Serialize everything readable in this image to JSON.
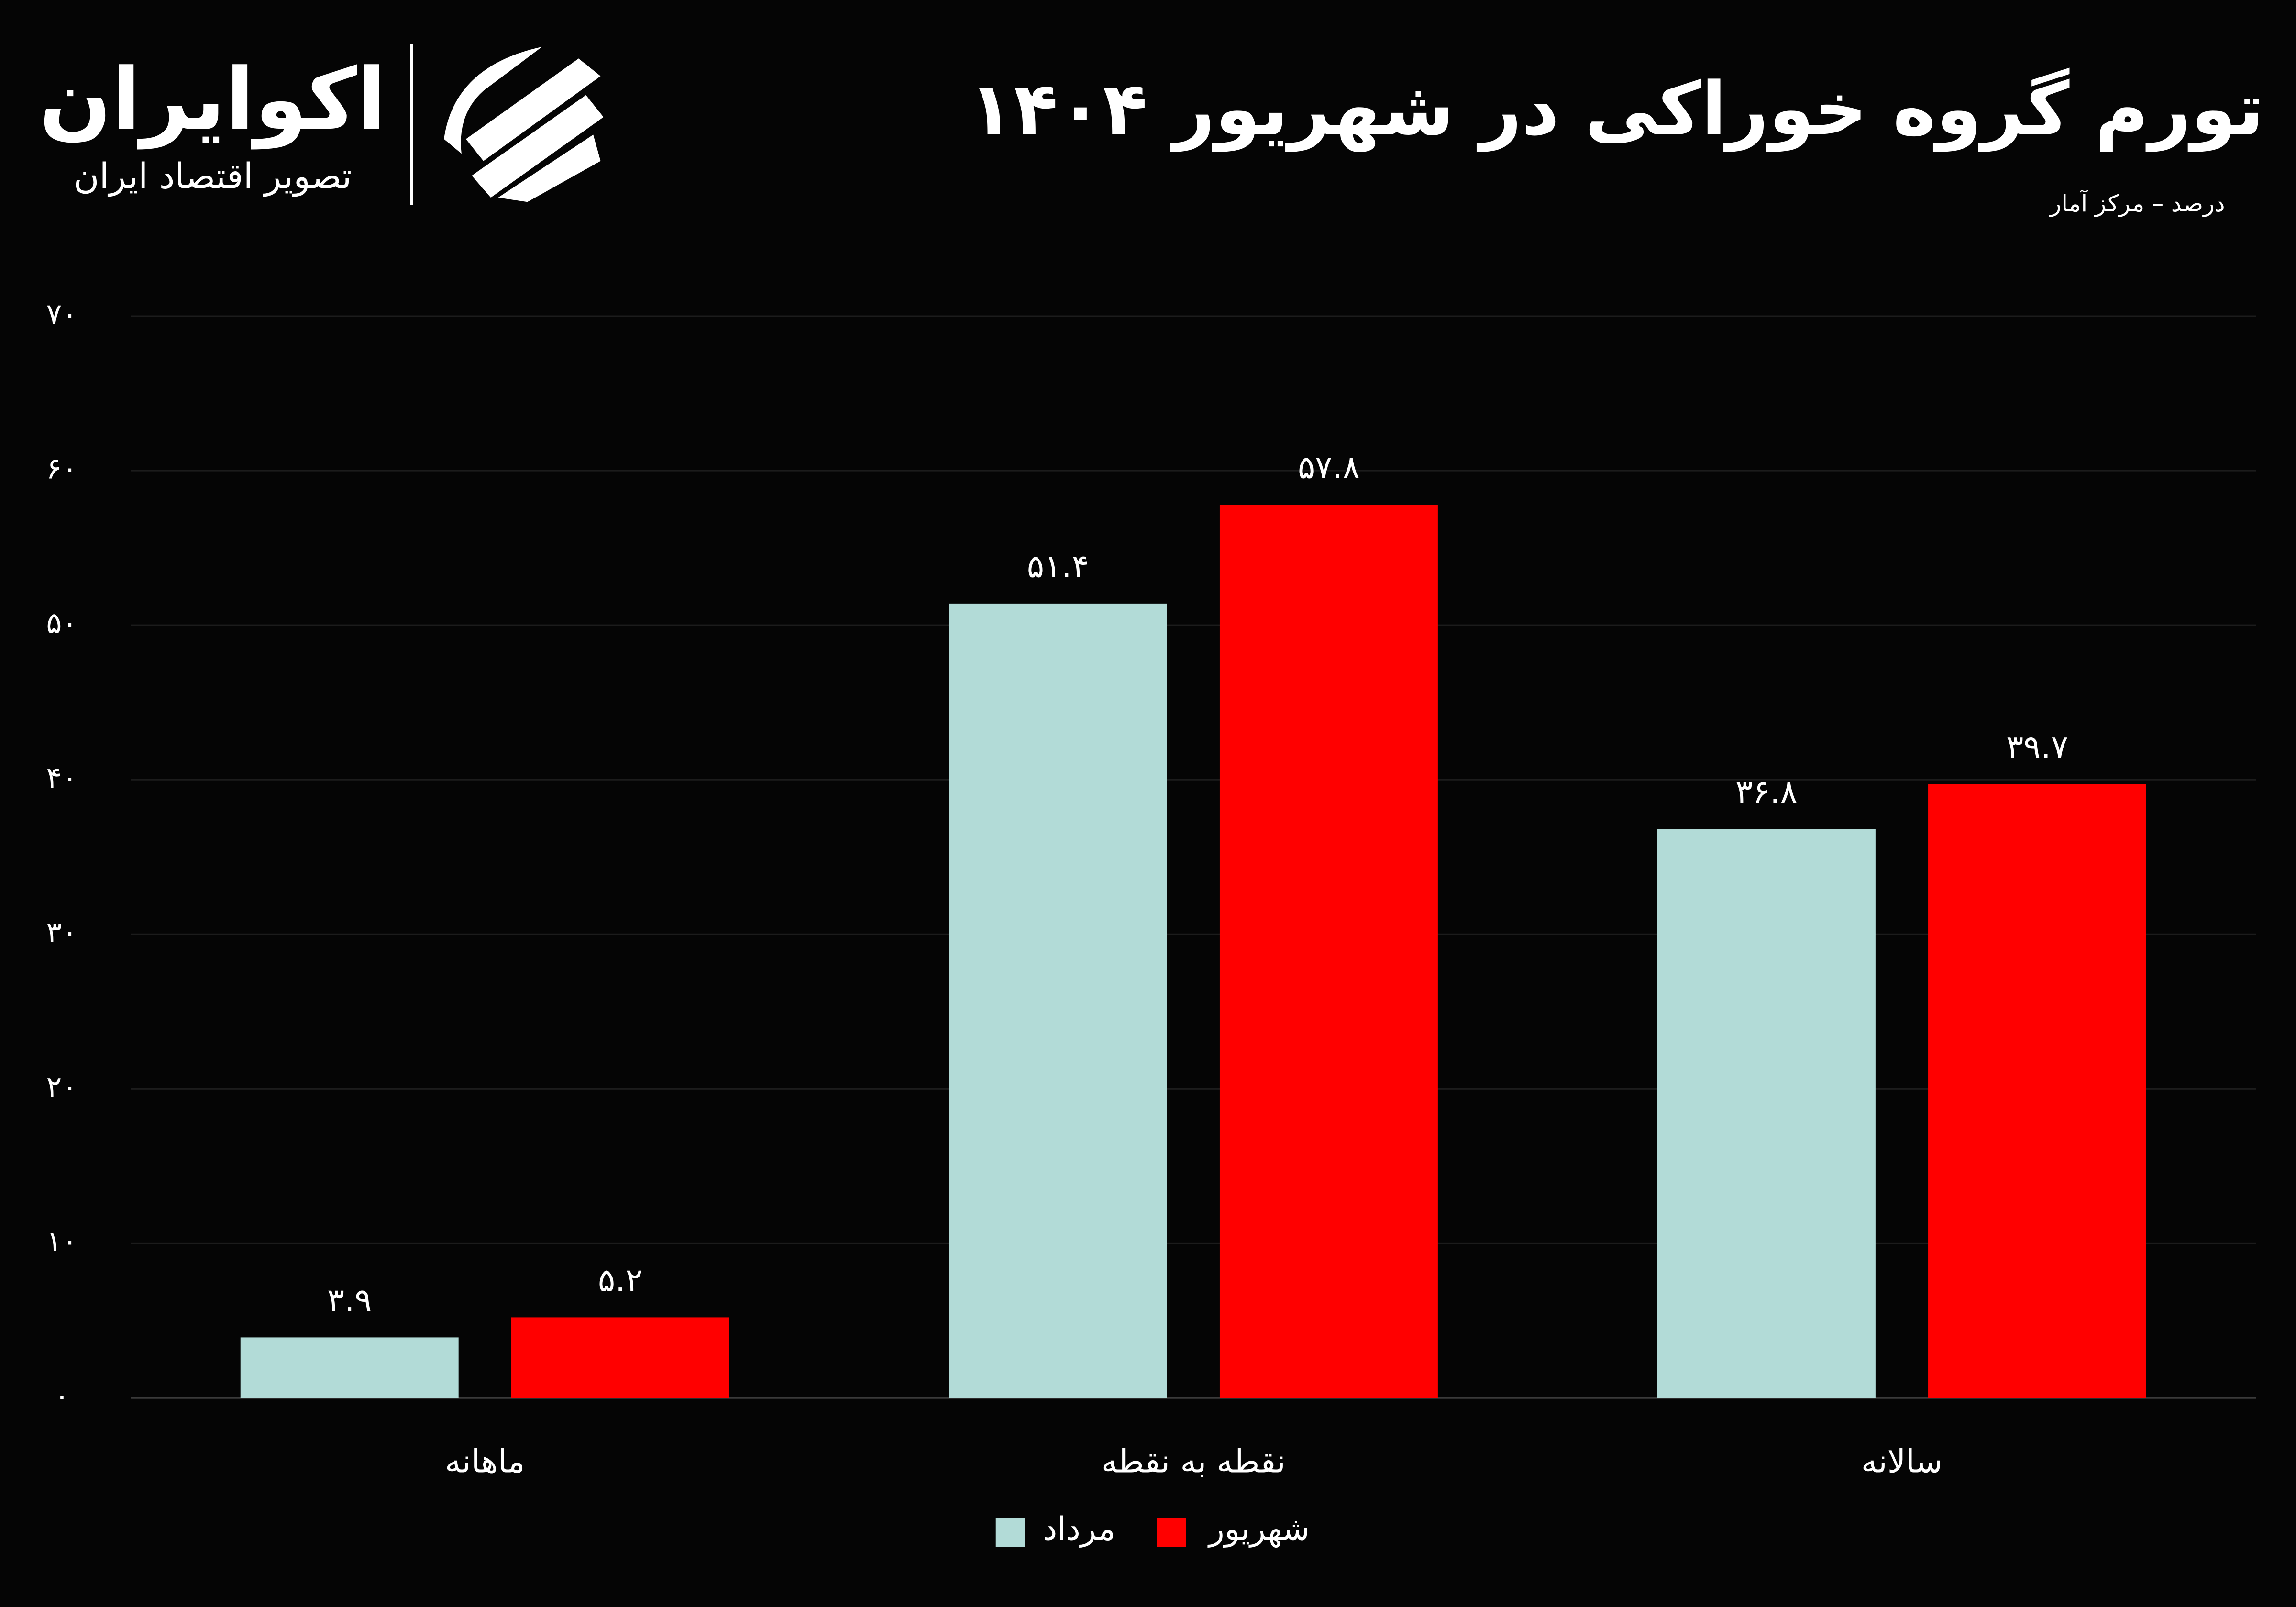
{
  "logo": {
    "name": "اکوایران",
    "tagline": "تصویر اقتصاد ایران"
  },
  "chart_data": {
    "type": "bar",
    "title": "تورم گروه خوراکی در شهریور ۱۴۰۴",
    "subtitle": "درصد – مرکز آمار",
    "categories": [
      "ماهانه",
      "نقطه به نقطه",
      "سالانه"
    ],
    "series": [
      {
        "name": "مرداد",
        "color": "#b2dbd7",
        "values": [
          3.9,
          51.4,
          36.8
        ],
        "value_labels": [
          "۳.۹",
          "۵۱.۴",
          "۳۶.۸"
        ]
      },
      {
        "name": "شهریور",
        "color": "#ff0000",
        "values": [
          5.2,
          57.8,
          39.7
        ],
        "value_labels": [
          "۵.۲",
          "۵۷.۸",
          "۳۹.۷"
        ]
      }
    ],
    "ylim": [
      0,
      70
    ],
    "yticks": [
      {
        "value": 0,
        "label": "۰"
      },
      {
        "value": 10,
        "label": "۱۰"
      },
      {
        "value": 20,
        "label": "۲۰"
      },
      {
        "value": 30,
        "label": "۳۰"
      },
      {
        "value": 40,
        "label": "۴۰"
      },
      {
        "value": 50,
        "label": "۵۰"
      },
      {
        "value": 60,
        "label": "۶۰"
      },
      {
        "value": 70,
        "label": "۷۰"
      }
    ],
    "grid": true
  }
}
